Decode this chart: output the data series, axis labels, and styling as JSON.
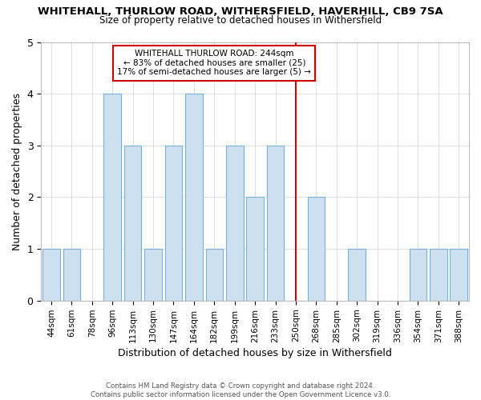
{
  "title_line1": "WHITEHALL, THURLOW ROAD, WITHERSFIELD, HAVERHILL, CB9 7SA",
  "title_line2": "Size of property relative to detached houses in Withersfield",
  "xlabel": "Distribution of detached houses by size in Withersfield",
  "ylabel": "Number of detached properties",
  "footnote": "Contains HM Land Registry data © Crown copyright and database right 2024.\nContains public sector information licensed under the Open Government Licence v3.0.",
  "bin_labels": [
    "44sqm",
    "61sqm",
    "78sqm",
    "96sqm",
    "113sqm",
    "130sqm",
    "147sqm",
    "164sqm",
    "182sqm",
    "199sqm",
    "216sqm",
    "233sqm",
    "250sqm",
    "268sqm",
    "285sqm",
    "302sqm",
    "319sqm",
    "336sqm",
    "354sqm",
    "371sqm",
    "388sqm"
  ],
  "bar_heights": [
    1,
    1,
    0,
    4,
    3,
    1,
    3,
    4,
    1,
    3,
    2,
    3,
    0,
    2,
    0,
    1,
    0,
    0,
    1,
    1,
    1
  ],
  "bar_color": "#cde0f0",
  "bar_edgecolor": "#7aafd4",
  "grid_color": "#dddddd",
  "vline_x_idx": 12,
  "vline_color": "#cc0000",
  "annotation_title": "WHITEHALL THURLOW ROAD: 244sqm",
  "annotation_line1": "← 83% of detached houses are smaller (25)",
  "annotation_line2": "17% of semi-detached houses are larger (5) →",
  "annotation_box_edgecolor": "#cc0000",
  "ylim": [
    0,
    5
  ],
  "yticks": [
    0,
    1,
    2,
    3,
    4,
    5
  ],
  "background_color": "#ffffff"
}
